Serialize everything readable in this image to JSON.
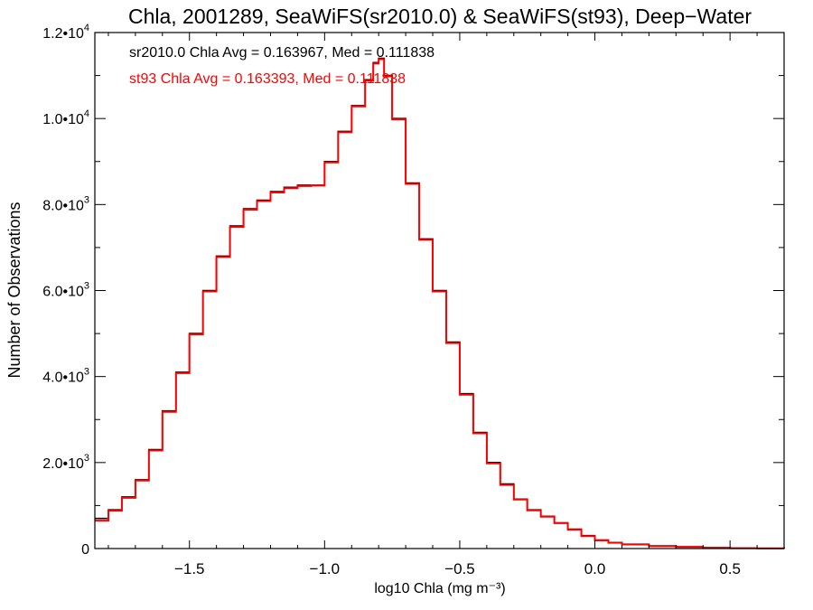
{
  "chart_data": {
    "type": "step",
    "title": "Chla, 2001289, SeaWiFS(sr2010.0) & SeaWiFS(st93), Deep−Water",
    "xlabel": "log10 Chla (mg m⁻³)",
    "ylabel": "Number of Observations",
    "xlim": [
      -1.85,
      0.7
    ],
    "ylim": [
      0,
      12000
    ],
    "xticks": [
      -1.5,
      -1.0,
      -0.5,
      0.0,
      0.5
    ],
    "xtick_labels": [
      "−1.5",
      "−1.0",
      "−0.5",
      "0.0",
      "0.5"
    ],
    "yticks": [
      0,
      2000,
      4000,
      6000,
      8000,
      10000,
      12000
    ],
    "ytick_labels": [
      {
        "mant": "0",
        "exp": ""
      },
      {
        "mant": "2.0•10",
        "exp": "3"
      },
      {
        "mant": "4.0•10",
        "exp": "3"
      },
      {
        "mant": "6.0•10",
        "exp": "3"
      },
      {
        "mant": "8.0•10",
        "exp": "3"
      },
      {
        "mant": "1.0•10",
        "exp": "4"
      },
      {
        "mant": "1.2•10",
        "exp": "4"
      }
    ],
    "annotations": {
      "sr2010": "sr2010.0 Chla Avg = 0.163967, Med = 0.111838",
      "st93": "st93 Chla Avg = 0.163393, Med = 0.111838"
    },
    "series": [
      {
        "name": "sr2010.0",
        "color": "#000000",
        "x": [
          -1.85,
          -1.8,
          -1.75,
          -1.7,
          -1.65,
          -1.6,
          -1.55,
          -1.5,
          -1.45,
          -1.4,
          -1.35,
          -1.3,
          -1.25,
          -1.2,
          -1.15,
          -1.1,
          -1.05,
          -1.0,
          -0.95,
          -0.9,
          -0.85,
          -0.82,
          -0.8,
          -0.78,
          -0.75,
          -0.7,
          -0.65,
          -0.6,
          -0.55,
          -0.5,
          -0.45,
          -0.4,
          -0.35,
          -0.3,
          -0.25,
          -0.2,
          -0.15,
          -0.1,
          -0.05,
          0.0,
          0.05,
          0.1,
          0.2,
          0.3,
          0.4,
          0.5,
          0.6,
          0.7
        ],
        "values": [
          700,
          900,
          1200,
          1600,
          2300,
          3200,
          4100,
          5000,
          6000,
          6800,
          7500,
          7900,
          8100,
          8300,
          8400,
          8450,
          8450,
          9000,
          9700,
          10300,
          10900,
          11300,
          11400,
          11000,
          10000,
          8500,
          7200,
          6000,
          4800,
          3600,
          2700,
          2000,
          1500,
          1150,
          900,
          750,
          600,
          450,
          300,
          200,
          140,
          100,
          60,
          40,
          20,
          10,
          5,
          3
        ]
      },
      {
        "name": "st93",
        "color": "#ff0000",
        "x": [
          -1.85,
          -1.8,
          -1.75,
          -1.7,
          -1.65,
          -1.6,
          -1.55,
          -1.5,
          -1.45,
          -1.4,
          -1.35,
          -1.3,
          -1.25,
          -1.2,
          -1.15,
          -1.1,
          -1.05,
          -1.0,
          -0.95,
          -0.9,
          -0.85,
          -0.82,
          -0.8,
          -0.78,
          -0.75,
          -0.7,
          -0.65,
          -0.6,
          -0.55,
          -0.5,
          -0.45,
          -0.4,
          -0.35,
          -0.3,
          -0.25,
          -0.2,
          -0.15,
          -0.1,
          -0.05,
          0.0,
          0.05,
          0.1,
          0.2,
          0.3,
          0.4,
          0.5,
          0.6,
          0.7
        ],
        "values": [
          650,
          880,
          1180,
          1580,
          2280,
          3180,
          4080,
          4980,
          5980,
          6780,
          7480,
          7880,
          8080,
          8280,
          8380,
          8430,
          8440,
          8980,
          9680,
          10280,
          10880,
          11280,
          11380,
          10980,
          9980,
          8480,
          7180,
          5980,
          4780,
          3580,
          2680,
          1980,
          1480,
          1140,
          890,
          740,
          590,
          440,
          290,
          190,
          135,
          95,
          55,
          35,
          18,
          8,
          4,
          2
        ]
      }
    ]
  }
}
